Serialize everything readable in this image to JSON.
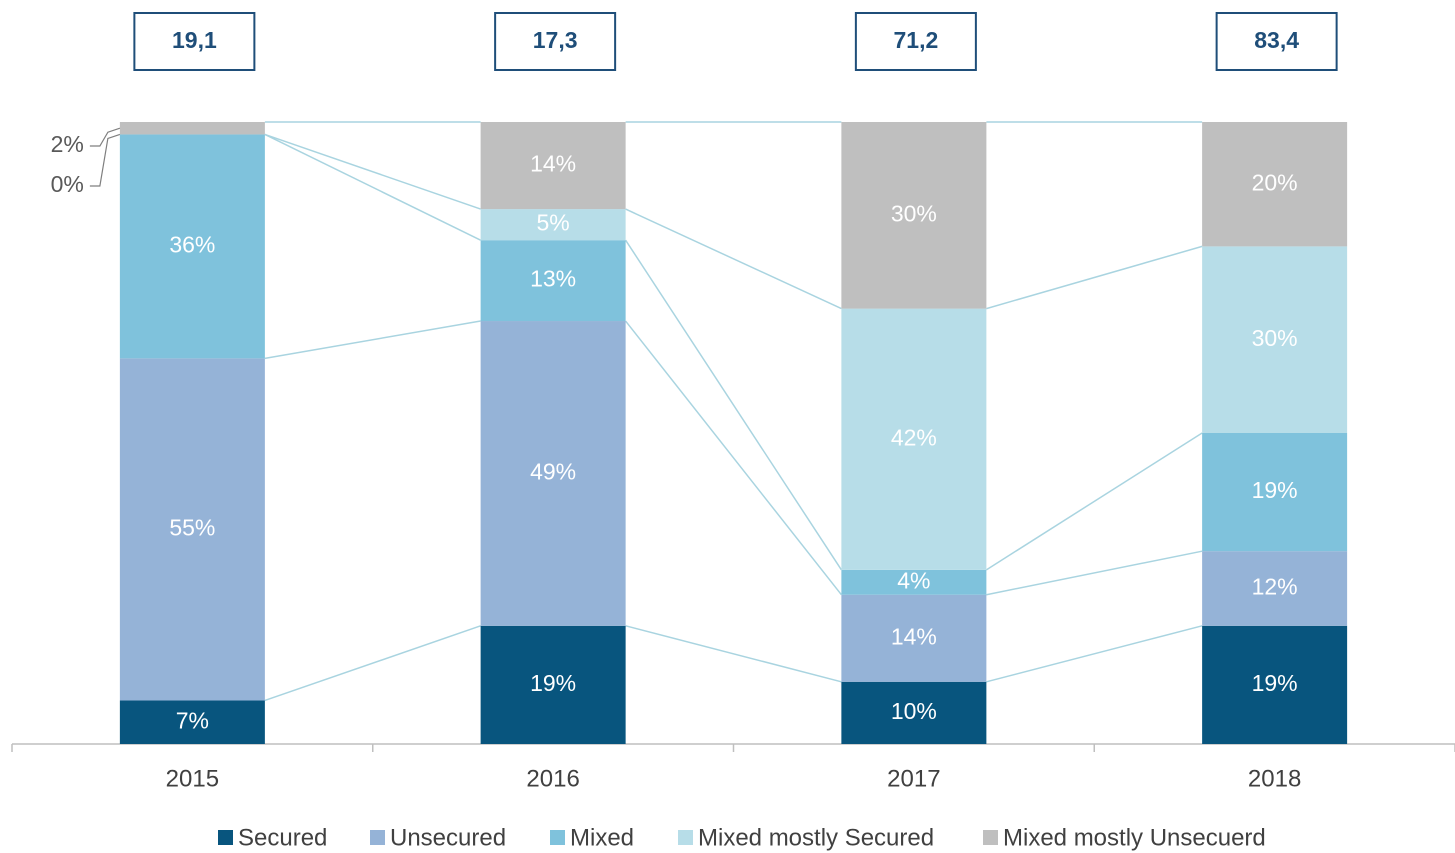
{
  "chart_data": {
    "type": "stacked_bar",
    "categories": [
      "2015",
      "2016",
      "2017",
      "2018"
    ],
    "ylim": [
      0,
      100
    ],
    "totals": {
      "values": [
        19.1,
        17.3,
        71.2,
        83.4
      ],
      "value_labels": [
        "19,1",
        "17,3",
        "71,2",
        "83,4"
      ]
    },
    "series": [
      {
        "name": "Secured",
        "color": "#08557e",
        "values": [
          7,
          19,
          10,
          19
        ],
        "value_labels": [
          "7%",
          "19%",
          "10%",
          "19%"
        ]
      },
      {
        "name": "Unsecured",
        "color": "#95b3d7",
        "values": [
          55,
          49,
          14,
          12
        ],
        "value_labels": [
          "55%",
          "49%",
          "14%",
          "12%"
        ]
      },
      {
        "name": "Mixed",
        "color": "#7fc2dc",
        "values": [
          36,
          13,
          4,
          19
        ],
        "value_labels": [
          "36%",
          "13%",
          "4%",
          "19%"
        ]
      },
      {
        "name": "Mixed mostly Secured",
        "color": "#b7dde8",
        "values": [
          0,
          5,
          42,
          30
        ],
        "value_labels": [
          "0%",
          "5%",
          "42%",
          "30%"
        ]
      },
      {
        "name": "Mixed mostly Unsecuerd",
        "color": "#bfbfbf",
        "values": [
          2,
          14,
          30,
          20
        ],
        "value_labels": [
          "2%",
          "14%",
          "30%",
          "20%"
        ]
      }
    ]
  }
}
